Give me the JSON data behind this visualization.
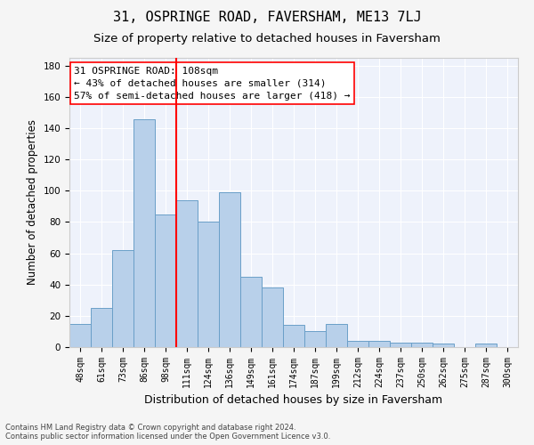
{
  "title": "31, OSPRINGE ROAD, FAVERSHAM, ME13 7LJ",
  "subtitle": "Size of property relative to detached houses in Faversham",
  "xlabel": "Distribution of detached houses by size in Faversham",
  "ylabel": "Number of detached properties",
  "footer_line1": "Contains HM Land Registry data © Crown copyright and database right 2024.",
  "footer_line2": "Contains public sector information licensed under the Open Government Licence v3.0.",
  "bar_labels": [
    "48sqm",
    "61sqm",
    "73sqm",
    "86sqm",
    "98sqm",
    "111sqm",
    "124sqm",
    "136sqm",
    "149sqm",
    "161sqm",
    "174sqm",
    "187sqm",
    "199sqm",
    "212sqm",
    "224sqm",
    "237sqm",
    "250sqm",
    "262sqm",
    "275sqm",
    "287sqm",
    "300sqm"
  ],
  "bar_values": [
    15,
    25,
    62,
    146,
    85,
    94,
    80,
    99,
    45,
    38,
    14,
    10,
    15,
    4,
    4,
    3,
    3,
    2,
    0,
    2,
    0
  ],
  "bar_color": "#b8d0ea",
  "bar_edge_color": "#6a9fc8",
  "vline_x": 4.5,
  "vline_color": "red",
  "vline_linewidth": 1.5,
  "annotation_title": "31 OSPRINGE ROAD: 108sqm",
  "annotation_line2": "← 43% of detached houses are smaller (314)",
  "annotation_line3": "57% of semi-detached houses are larger (418) →",
  "ylim": [
    0,
    185
  ],
  "yticks": [
    0,
    20,
    40,
    60,
    80,
    100,
    120,
    140,
    160,
    180
  ],
  "bg_color": "#eef2fb",
  "grid_color": "#ffffff",
  "title_fontsize": 11,
  "subtitle_fontsize": 9.5,
  "ylabel_fontsize": 8.5,
  "xlabel_fontsize": 9,
  "tick_fontsize": 7,
  "annotation_fontsize": 8,
  "footer_fontsize": 6,
  "fig_bg": "#f5f5f5"
}
